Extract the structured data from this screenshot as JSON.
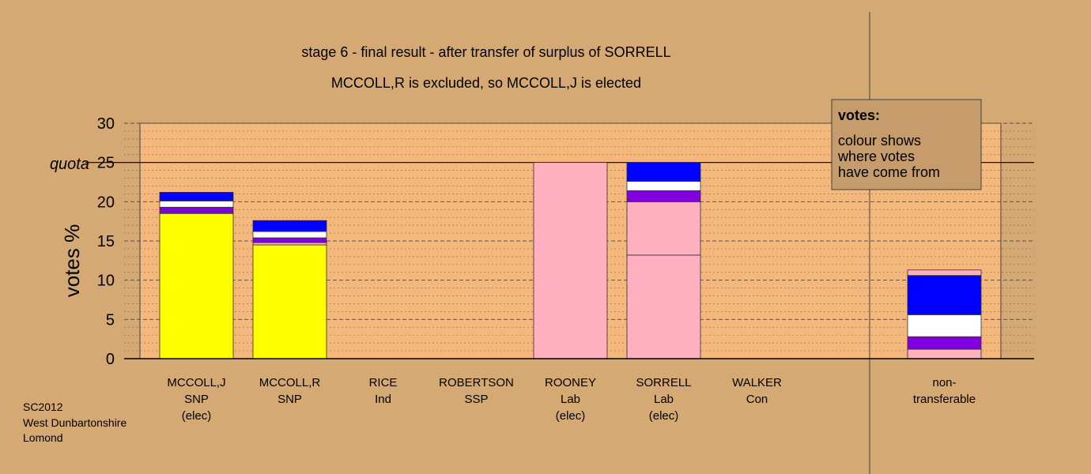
{
  "chart_data": {
    "type": "bar",
    "title": "stage 6 - final result - after transfer of surplus of SORRELL",
    "subtitle": "MCCOLL,R is excluded, so MCCOLL,J is elected",
    "ylabel": "votes %",
    "ylim": [
      0,
      30
    ],
    "yticks": [
      0,
      5,
      10,
      15,
      20,
      25,
      30
    ],
    "quota": 25,
    "quota_label": "quota",
    "grid": true,
    "legend_position": "top-right",
    "categories": [
      {
        "name": "MCCOLL,J",
        "party": "SNP",
        "status": "(elec)"
      },
      {
        "name": "MCCOLL,R",
        "party": "SNP",
        "status": ""
      },
      {
        "name": "RICE",
        "party": "Ind",
        "status": ""
      },
      {
        "name": "ROBERTSON",
        "party": "SSP",
        "status": ""
      },
      {
        "name": "ROONEY",
        "party": "Lab",
        "status": "(elec)"
      },
      {
        "name": "SORRELL",
        "party": "Lab",
        "status": "(elec)"
      },
      {
        "name": "WALKER",
        "party": "Con",
        "status": ""
      },
      {
        "name": "non-",
        "party": "transferable",
        "status": ""
      }
    ],
    "colors": {
      "snp": "#ffff00",
      "lab": "#ffb0c0",
      "ssp": "#8000e0",
      "ind": "#ffffff",
      "con": "#0000ff"
    },
    "stacks": [
      [
        {
          "value": 18.5,
          "color": "snp"
        },
        {
          "value": 0.1,
          "color": "lab"
        },
        {
          "value": 0.7,
          "color": "ssp"
        },
        {
          "value": 0.8,
          "color": "ind"
        },
        {
          "value": 1.1,
          "color": "con"
        }
      ],
      [
        {
          "value": 14.5,
          "color": "snp"
        },
        {
          "value": 0.3,
          "color": "lab"
        },
        {
          "value": 0.6,
          "color": "ssp"
        },
        {
          "value": 0.8,
          "color": "ind"
        },
        {
          "value": 1.4,
          "color": "con"
        }
      ],
      [],
      [],
      [
        {
          "value": 25.0,
          "color": "lab"
        }
      ],
      [
        {
          "value": 13.2,
          "color": "lab"
        },
        {
          "value": 6.8,
          "color": "lab"
        },
        {
          "value": 1.4,
          "color": "ssp"
        },
        {
          "value": 1.2,
          "color": "ind"
        },
        {
          "value": 2.4,
          "color": "con"
        }
      ],
      [],
      [
        {
          "value": 1.2,
          "color": "lab"
        },
        {
          "value": 1.6,
          "color": "ssp"
        },
        {
          "value": 2.8,
          "color": "ind"
        },
        {
          "value": 5.0,
          "color": "con"
        },
        {
          "value": 0.7,
          "color": "lab"
        }
      ]
    ],
    "legend": {
      "heading": "votes:",
      "lines": [
        "colour shows",
        "where votes",
        "have come from"
      ]
    }
  },
  "footer": {
    "lines": [
      "SC2012",
      "West Dunbartonshire",
      "Lomond"
    ]
  }
}
